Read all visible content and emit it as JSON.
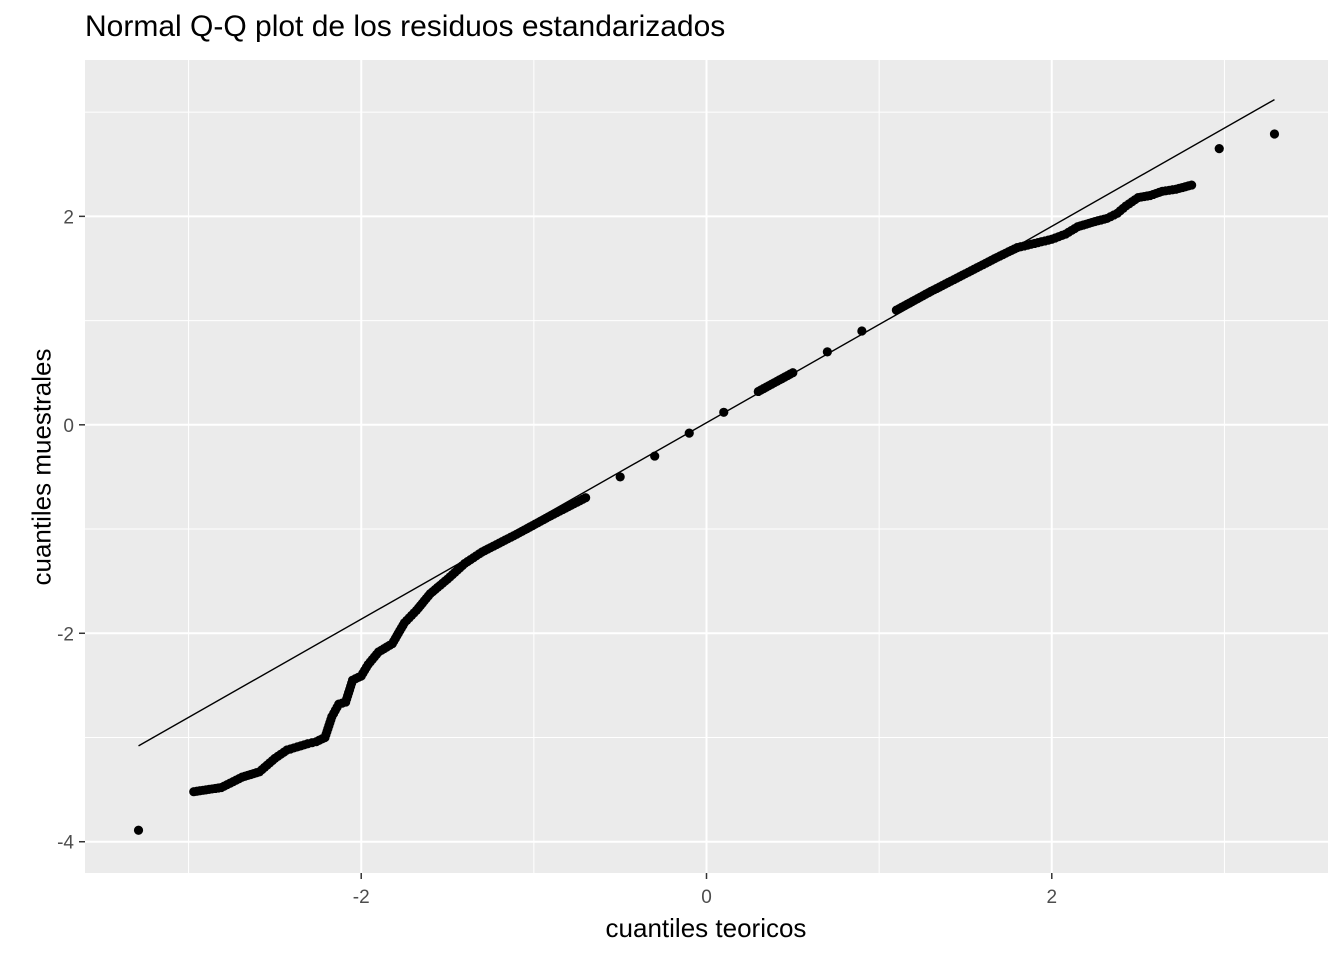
{
  "chart_data": {
    "type": "scatter",
    "title": "Normal Q-Q plot de los residuos estandarizados",
    "xlabel": "cuantiles teoricos",
    "ylabel": "cuantiles muestrales",
    "xlim": [
      -3.6,
      3.6
    ],
    "ylim": [
      -4.3,
      3.5
    ],
    "x_ticks": [
      -2,
      0,
      2
    ],
    "y_ticks": [
      -4,
      -2,
      0,
      2
    ],
    "x_tick_labels": [
      "-2",
      "0",
      "2"
    ],
    "y_tick_labels": [
      "-4",
      "-2",
      "0",
      "2"
    ],
    "grid": true,
    "reference_line": {
      "x": [
        -3.29,
        3.29
      ],
      "y": [
        -3.08,
        3.12
      ]
    },
    "key_points": [
      {
        "x": -3.29,
        "y": -3.89
      },
      {
        "x": -2.97,
        "y": -3.52
      },
      {
        "x": -2.81,
        "y": -3.48
      },
      {
        "x": -2.69,
        "y": -3.38
      },
      {
        "x": -2.59,
        "y": -3.33
      },
      {
        "x": -2.5,
        "y": -3.2
      },
      {
        "x": -2.43,
        "y": -3.12
      },
      {
        "x": -2.37,
        "y": -3.09
      },
      {
        "x": -2.31,
        "y": -3.06
      },
      {
        "x": -2.26,
        "y": -3.04
      },
      {
        "x": -2.21,
        "y": -3.0
      },
      {
        "x": -2.17,
        "y": -2.8
      },
      {
        "x": -2.13,
        "y": -2.68
      },
      {
        "x": -2.09,
        "y": -2.66
      },
      {
        "x": -2.05,
        "y": -2.45
      },
      {
        "x": -2.0,
        "y": -2.41
      },
      {
        "x": -1.96,
        "y": -2.3
      },
      {
        "x": -1.9,
        "y": -2.18
      },
      {
        "x": -1.82,
        "y": -2.1
      },
      {
        "x": -1.75,
        "y": -1.9
      },
      {
        "x": -1.68,
        "y": -1.78
      },
      {
        "x": -1.6,
        "y": -1.62
      },
      {
        "x": -1.5,
        "y": -1.48
      },
      {
        "x": -1.4,
        "y": -1.33
      },
      {
        "x": -1.3,
        "y": -1.22
      },
      {
        "x": -1.1,
        "y": -1.05
      },
      {
        "x": -0.9,
        "y": -0.87
      },
      {
        "x": -0.7,
        "y": -0.7
      },
      {
        "x": -0.5,
        "y": -0.5
      },
      {
        "x": -0.3,
        "y": -0.3
      },
      {
        "x": -0.1,
        "y": -0.08
      },
      {
        "x": 0.1,
        "y": 0.12
      },
      {
        "x": 0.3,
        "y": 0.32
      },
      {
        "x": 0.5,
        "y": 0.5
      },
      {
        "x": 0.7,
        "y": 0.7
      },
      {
        "x": 0.9,
        "y": 0.9
      },
      {
        "x": 1.1,
        "y": 1.1
      },
      {
        "x": 1.3,
        "y": 1.28
      },
      {
        "x": 1.5,
        "y": 1.45
      },
      {
        "x": 1.7,
        "y": 1.62
      },
      {
        "x": 1.8,
        "y": 1.7
      },
      {
        "x": 1.9,
        "y": 1.74
      },
      {
        "x": 2.0,
        "y": 1.78
      },
      {
        "x": 2.08,
        "y": 1.83
      },
      {
        "x": 2.15,
        "y": 1.9
      },
      {
        "x": 2.25,
        "y": 1.95
      },
      {
        "x": 2.32,
        "y": 1.98
      },
      {
        "x": 2.38,
        "y": 2.03
      },
      {
        "x": 2.43,
        "y": 2.1
      },
      {
        "x": 2.5,
        "y": 2.18
      },
      {
        "x": 2.57,
        "y": 2.2
      },
      {
        "x": 2.64,
        "y": 2.24
      },
      {
        "x": 2.72,
        "y": 2.26
      },
      {
        "x": 2.81,
        "y": 2.3
      },
      {
        "x": 2.97,
        "y": 2.65
      },
      {
        "x": 3.29,
        "y": 2.79
      }
    ]
  }
}
